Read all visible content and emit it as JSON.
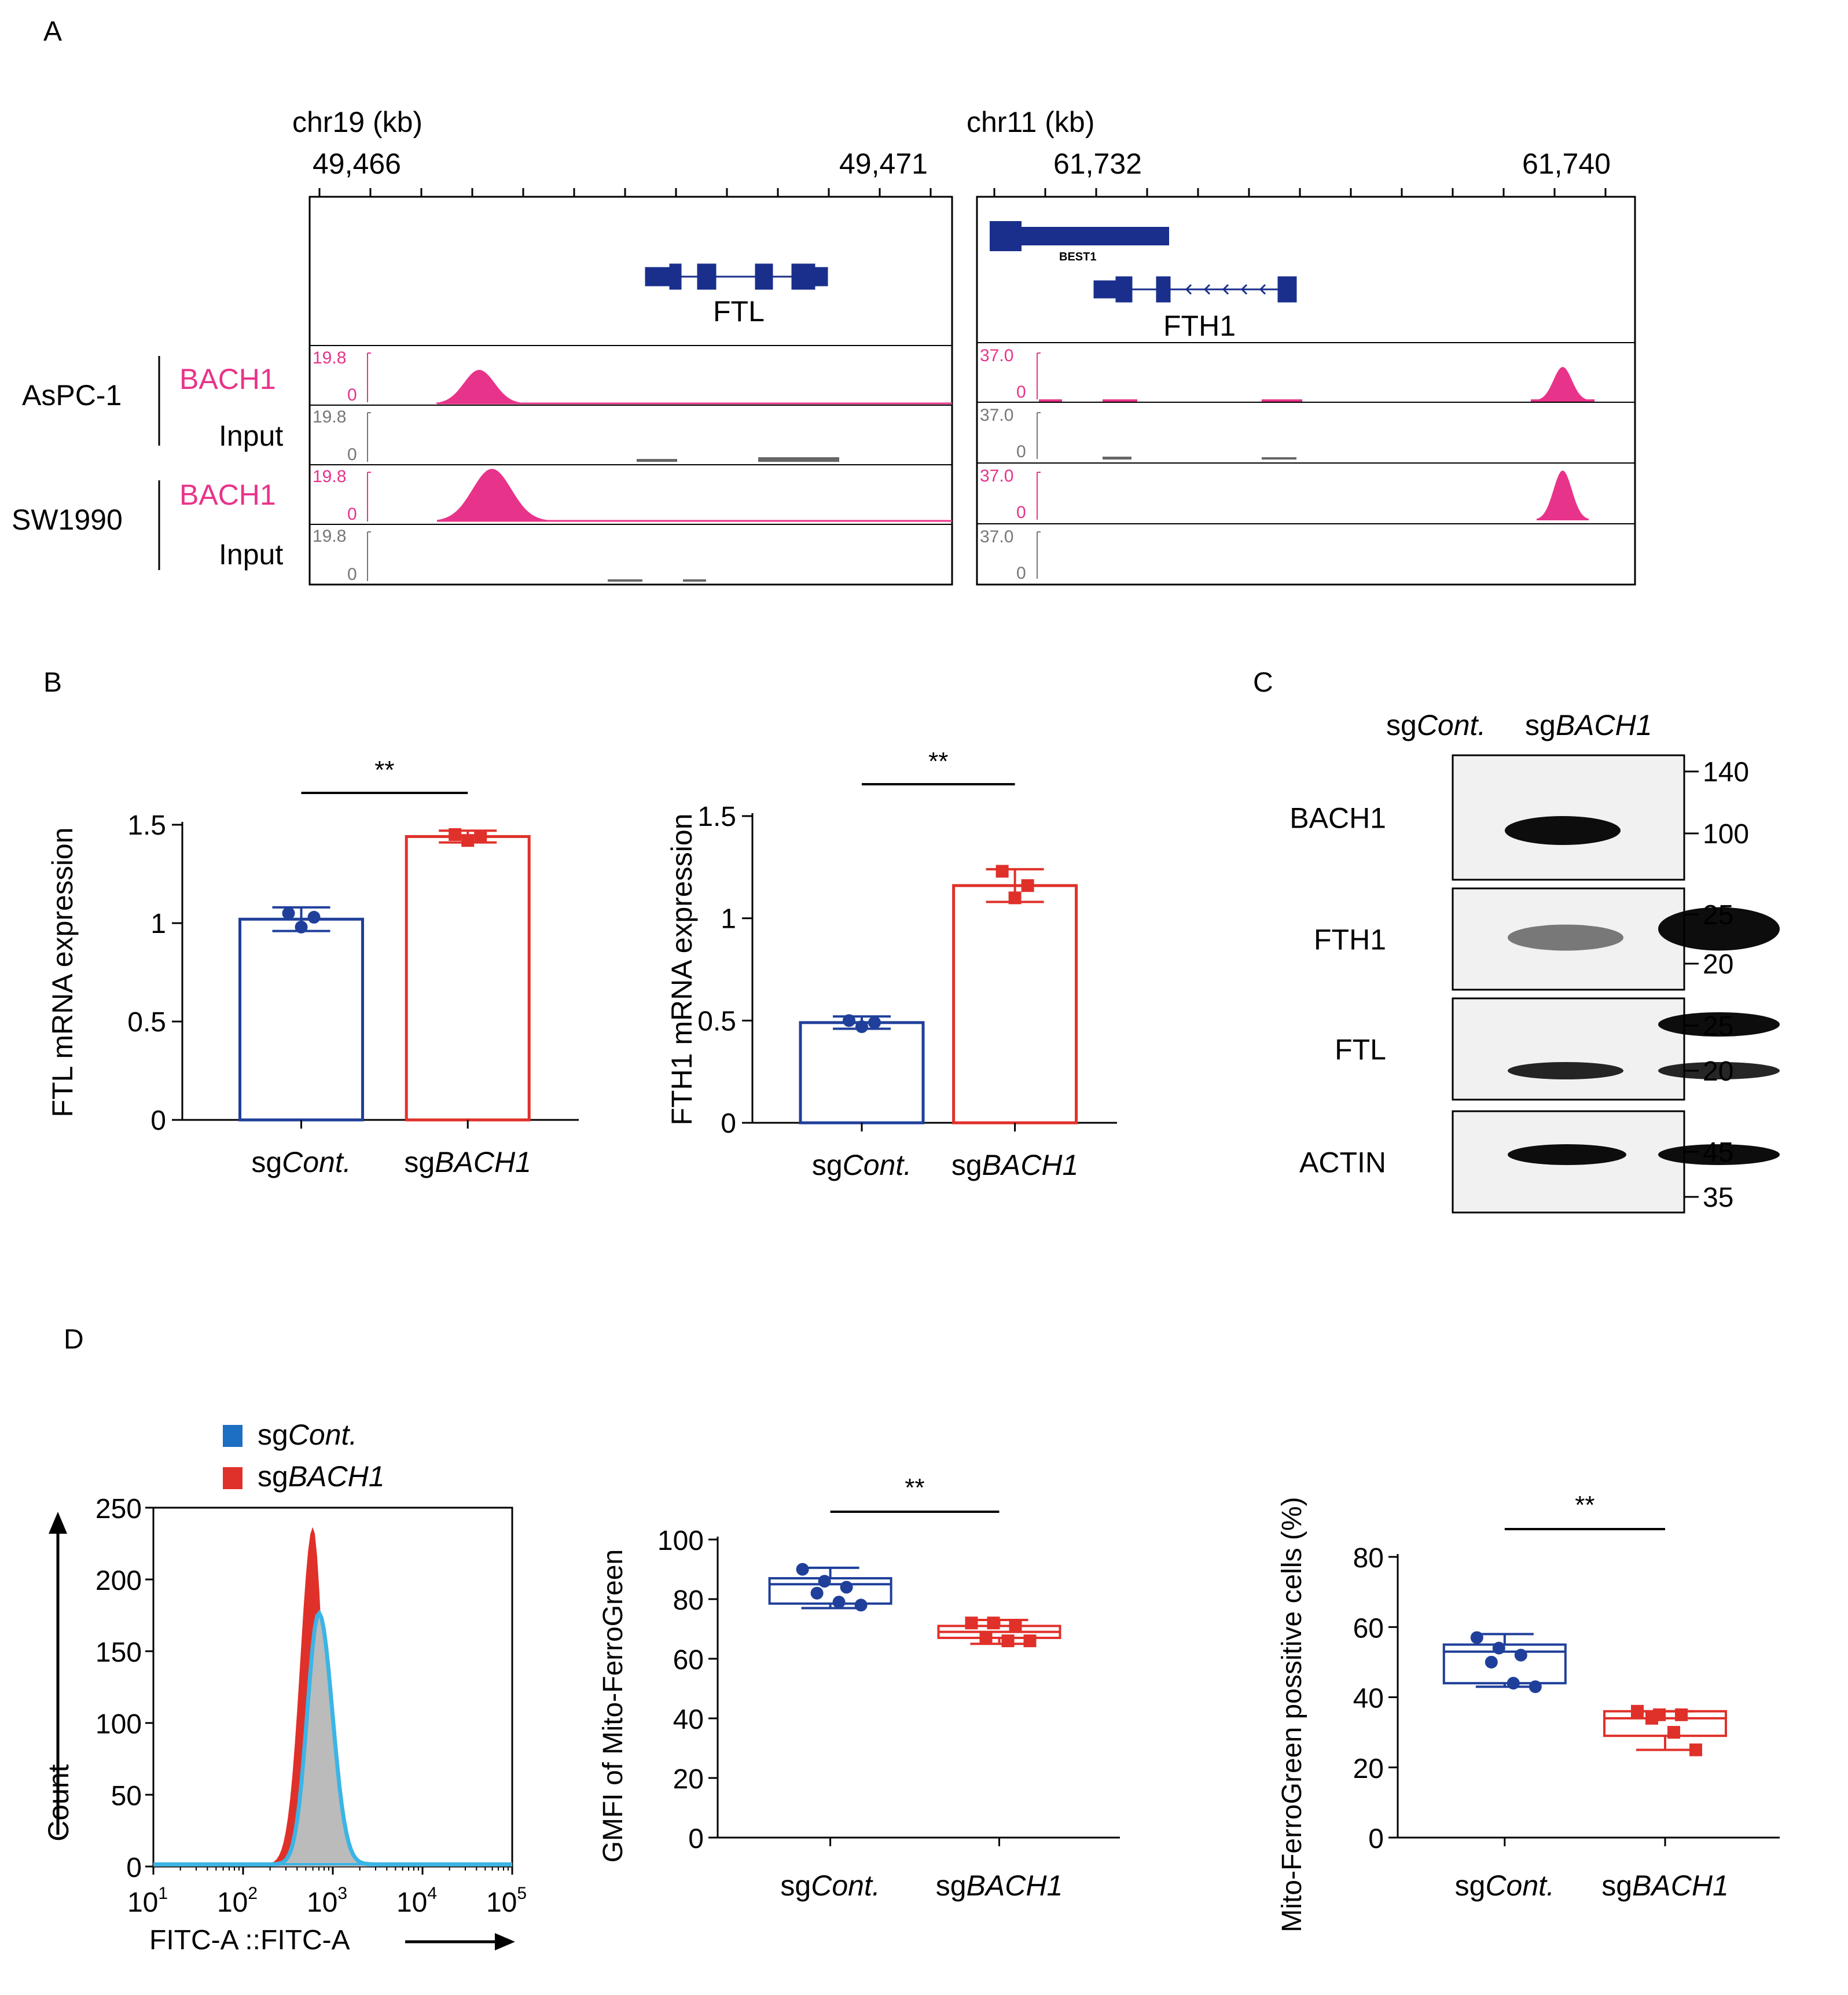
{
  "panels": {
    "a": "A",
    "b": "B",
    "c": "C",
    "d": "D"
  },
  "colors": {
    "blue": "#1f3f9a",
    "red": "#e0302a",
    "pink": "#e8338a",
    "navy": "#1a2f8c",
    "gray": "#777777",
    "cyan": "#3bb4e6",
    "hist_fill": "#bbbbbb"
  },
  "panel_a": {
    "left": {
      "chrom": "chr19 (kb)",
      "tick_labels": [
        "49,466",
        "49,471"
      ],
      "genes": [
        {
          "name": "FTL"
        }
      ]
    },
    "right": {
      "chrom": "chr11 (kb)",
      "tick_labels": [
        "61,732",
        "61,740"
      ],
      "genes": [
        {
          "name": "BEST1"
        },
        {
          "name": "FTH1"
        }
      ]
    },
    "cell_lines": [
      "AsPC-1",
      "SW1990"
    ],
    "track_names": [
      "BACH1",
      "Input",
      "BACH1",
      "Input"
    ],
    "scale_left": {
      "max": "19.8",
      "min": "0"
    },
    "scale_right": {
      "max": "37.0",
      "min": "0"
    }
  },
  "chart_data": [
    {
      "type": "bar",
      "title": "",
      "xlabel": "",
      "ylabel": "FTL mRNA expression",
      "categories": [
        "sgCont.",
        "sgBACH1"
      ],
      "values": [
        1.02,
        1.44
      ],
      "error": [
        0.06,
        0.03
      ],
      "points": [
        [
          1.05,
          0.98,
          1.03
        ],
        [
          1.45,
          1.42,
          1.44
        ]
      ],
      "ylim": [
        0,
        1.5
      ],
      "yticks": [
        "0",
        "0.5",
        "1",
        "1.5"
      ],
      "significance": "**"
    },
    {
      "type": "bar",
      "title": "",
      "xlabel": "",
      "ylabel": "FTH1 mRNA expression",
      "categories": [
        "sgCont.",
        "sgBACH1"
      ],
      "values": [
        0.49,
        1.16
      ],
      "error": [
        0.03,
        0.08
      ],
      "points": [
        [
          0.5,
          0.47,
          0.49
        ],
        [
          1.23,
          1.1,
          1.16
        ]
      ],
      "ylim": [
        0,
        1.5
      ],
      "yticks": [
        "0",
        "0.5",
        "1",
        "1.5"
      ],
      "significance": "**"
    },
    {
      "type": "line",
      "title": "",
      "xlabel": "FITC-A ::FITC-A",
      "ylabel": "Count",
      "series": [
        {
          "name": "sgCont.",
          "peak_x": 700,
          "peak_count": 175
        },
        {
          "name": "sgBACH1",
          "peak_x": 600,
          "peak_count": 235
        }
      ],
      "xscale": "log",
      "xlim": [
        10,
        100000
      ],
      "ylim": [
        0,
        250
      ],
      "yticks": [
        "0",
        "50",
        "100",
        "150",
        "200",
        "250"
      ],
      "xticks": [
        {
          "base": "10",
          "exp": "1"
        },
        {
          "base": "10",
          "exp": "2"
        },
        {
          "base": "10",
          "exp": "3"
        },
        {
          "base": "10",
          "exp": "4"
        },
        {
          "base": "10",
          "exp": "5"
        }
      ],
      "legend": "top-left"
    },
    {
      "type": "box",
      "title": "",
      "xlabel": "",
      "ylabel": "GMFI of Mito-FerroGreen",
      "categories": [
        "sgCont.",
        "sgBACH1"
      ],
      "boxes": [
        {
          "min": 77,
          "q1": 78.5,
          "median": 85,
          "q3": 87,
          "max": 90.5,
          "points": [
            90,
            86,
            84,
            82,
            79,
            78
          ]
        },
        {
          "min": 65,
          "q1": 67,
          "median": 69,
          "q3": 71,
          "max": 73,
          "points": [
            72,
            72,
            71,
            67,
            66,
            66
          ]
        }
      ],
      "ylim": [
        0,
        100
      ],
      "yticks": [
        "0",
        "20",
        "40",
        "60",
        "80",
        "100"
      ],
      "significance": "**"
    },
    {
      "type": "box",
      "title": "",
      "xlabel": "",
      "ylabel": "Mito-FerroGreen possitive cells (%)",
      "categories": [
        "sgCont.",
        "sgBACH1"
      ],
      "boxes": [
        {
          "min": 43,
          "q1": 44,
          "median": 53,
          "q3": 55,
          "max": 58,
          "points": [
            57,
            54,
            52,
            50,
            44,
            43
          ]
        },
        {
          "min": 25,
          "q1": 29,
          "median": 34,
          "q3": 36,
          "max": 36,
          "points": [
            36,
            35,
            35,
            34,
            30,
            25
          ]
        }
      ],
      "ylim": [
        0,
        80
      ],
      "yticks": [
        "0",
        "20",
        "40",
        "60",
        "80"
      ],
      "significance": "**"
    }
  ],
  "western": {
    "lanes": [
      "sgCont.",
      "sgBACH1"
    ],
    "blots": [
      {
        "label": "BACH1",
        "markers": [
          "140",
          "100"
        ]
      },
      {
        "label": "FTH1",
        "markers": [
          "25",
          "20"
        ]
      },
      {
        "label": "FTL",
        "markers": [
          "25",
          "20"
        ]
      },
      {
        "label": "ACTIN",
        "markers": [
          "45",
          "35"
        ]
      }
    ]
  }
}
